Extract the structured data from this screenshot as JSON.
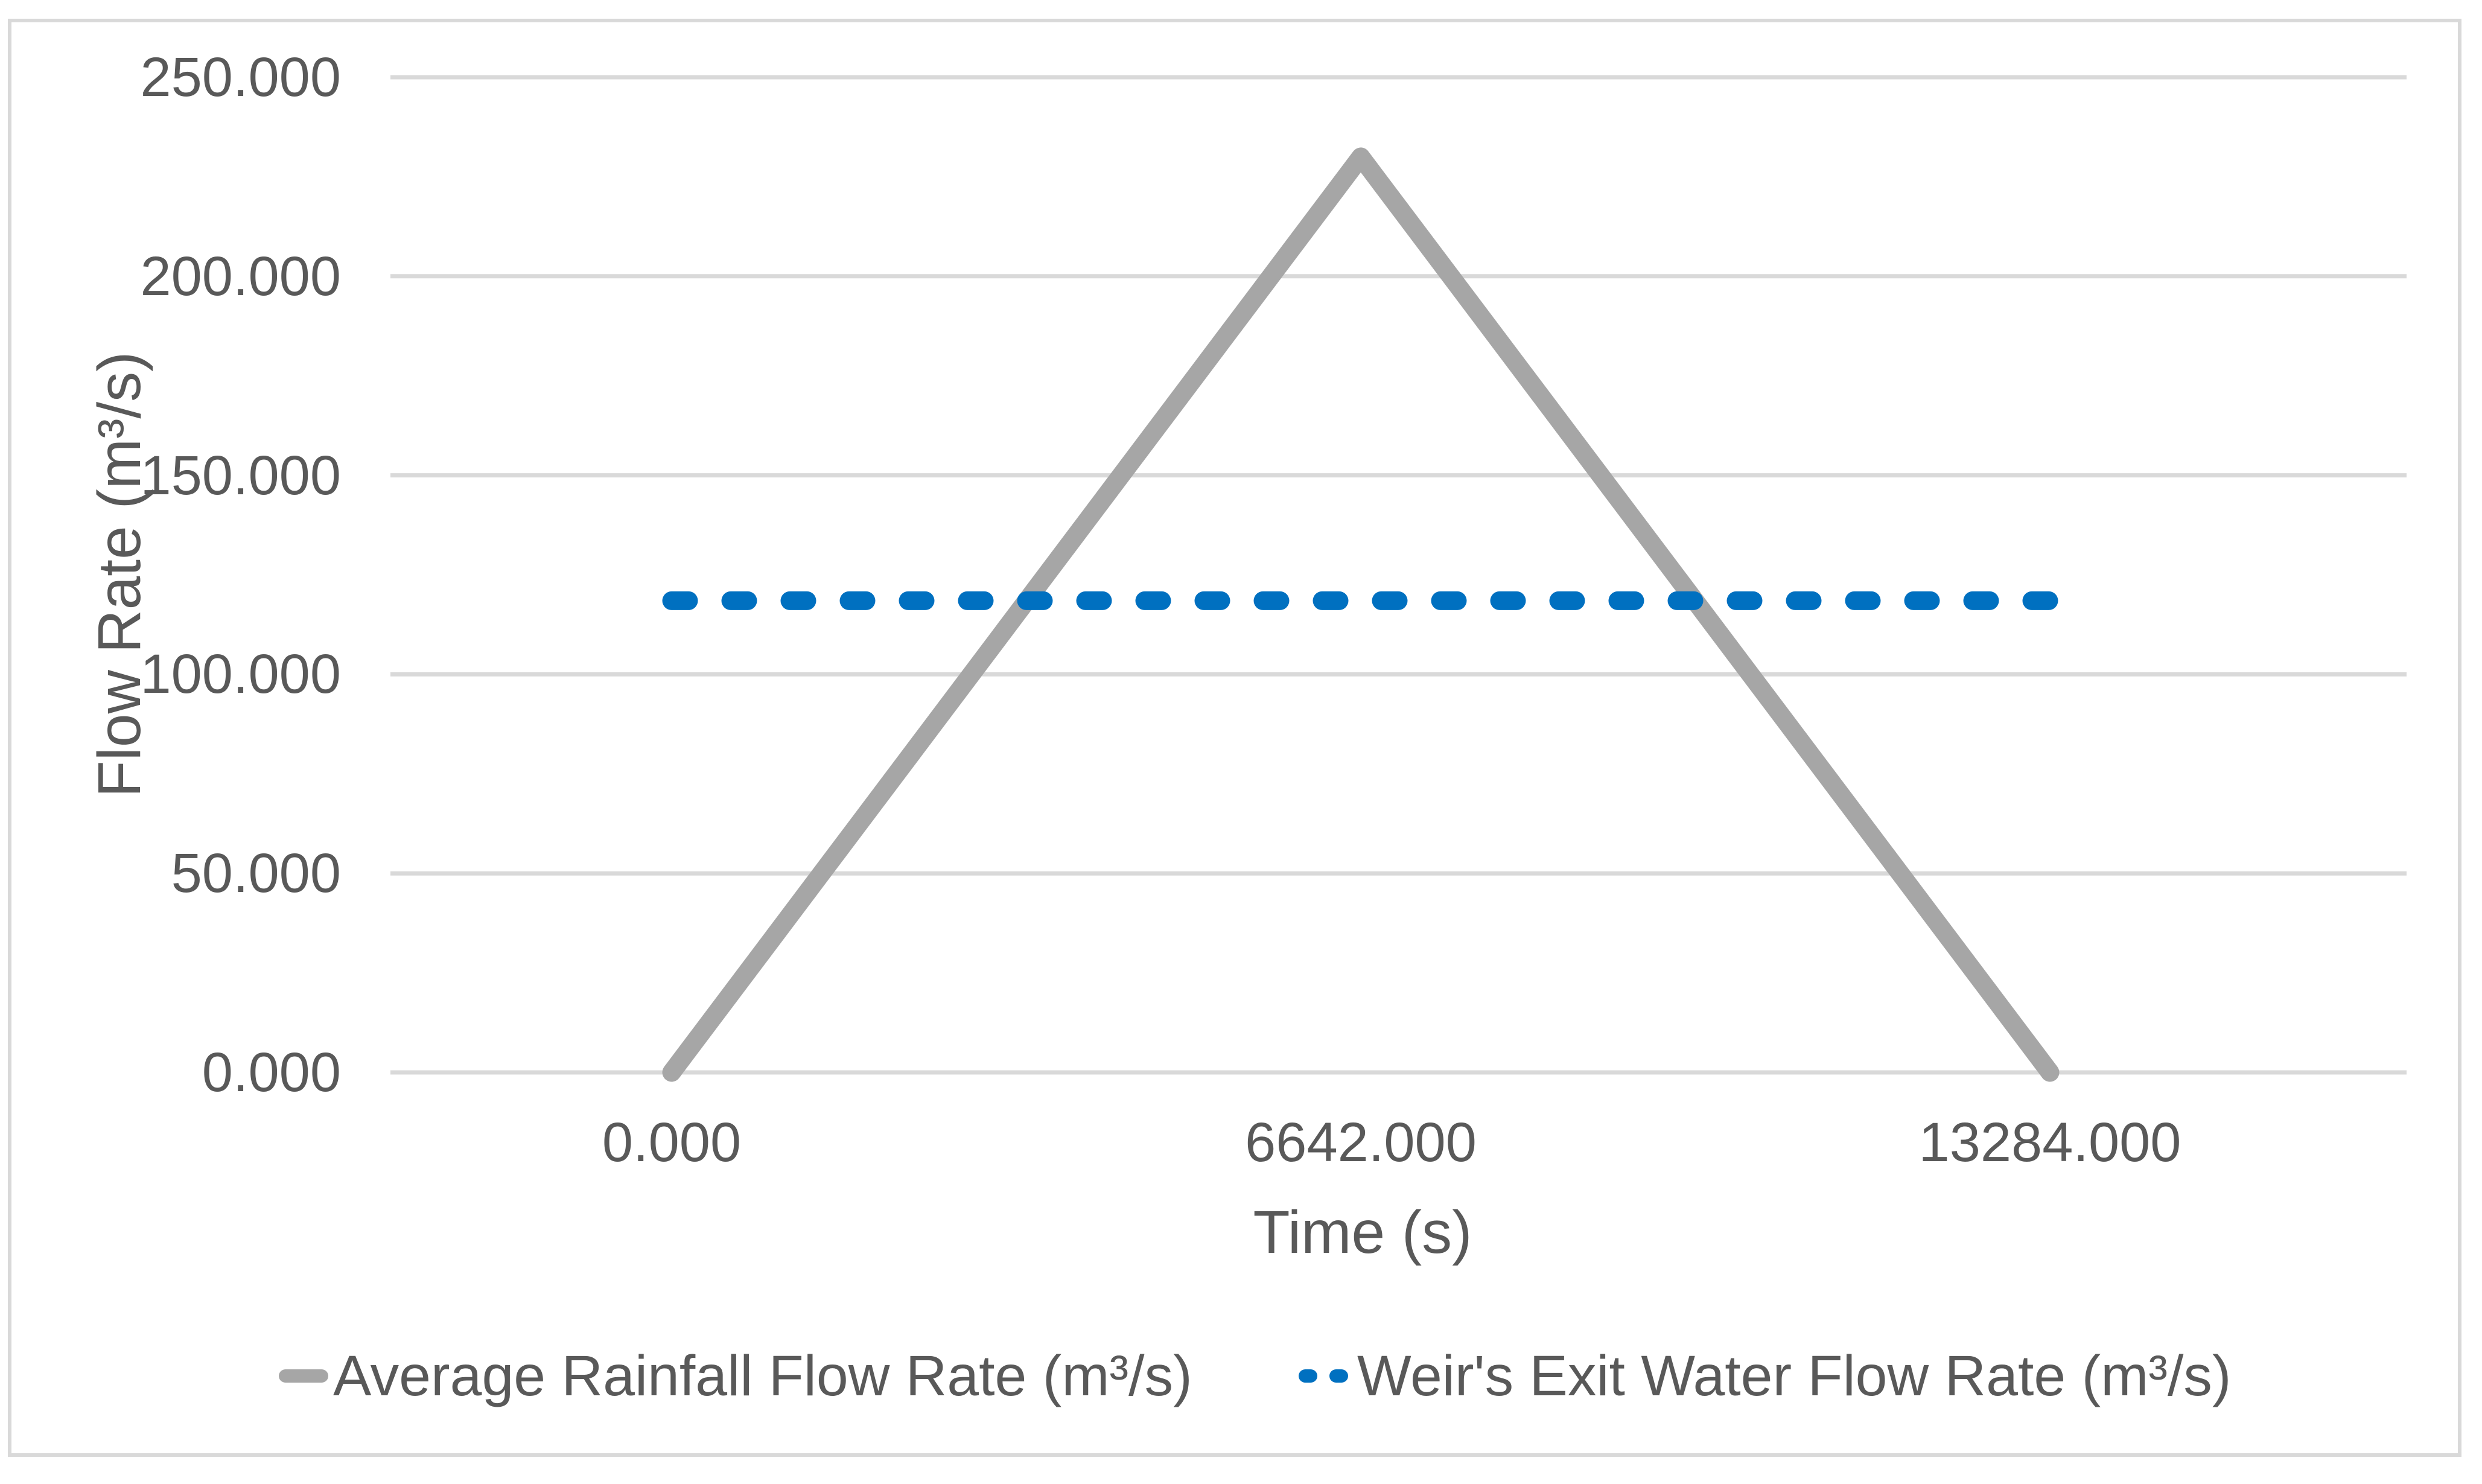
{
  "chart_data": {
    "type": "line",
    "title": "",
    "xlabel": "Time (s)",
    "ylabel": "Flow Rate (m³/s)",
    "xlim": [
      0,
      13284
    ],
    "ylim": [
      0,
      250
    ],
    "grid": "horizontal-only",
    "gridline_color": "#D9D9D9",
    "legend_position": "bottom-center",
    "x_ticks": [
      {
        "value": 0,
        "label": "0.000"
      },
      {
        "value": 6642,
        "label": "6642.000"
      },
      {
        "value": 13284,
        "label": "13284.000"
      }
    ],
    "y_ticks": [
      {
        "value": 0,
        "label": "0.000"
      },
      {
        "value": 50,
        "label": "50.000"
      },
      {
        "value": 100,
        "label": "100.000"
      },
      {
        "value": 150,
        "label": "150.000"
      },
      {
        "value": 200,
        "label": "200.000"
      },
      {
        "value": 250,
        "label": "250.000"
      }
    ],
    "series": [
      {
        "name": "Average Rainfall Flow Rate (m³/s)",
        "color": "#A6A6A6",
        "style": "solid",
        "points": [
          [
            0,
            0
          ],
          [
            6642,
            230
          ],
          [
            13284,
            0
          ]
        ]
      },
      {
        "name": "Weir's Exit Water Flow Rate (m³/s)",
        "color": "#0070C0",
        "style": "dashed",
        "points": [
          [
            0,
            118.5
          ],
          [
            13284,
            118.5
          ]
        ]
      }
    ]
  },
  "colors": {
    "background": "#FFFFFF",
    "frame_border": "#D9D9D9",
    "axis_text": "#595959"
  }
}
